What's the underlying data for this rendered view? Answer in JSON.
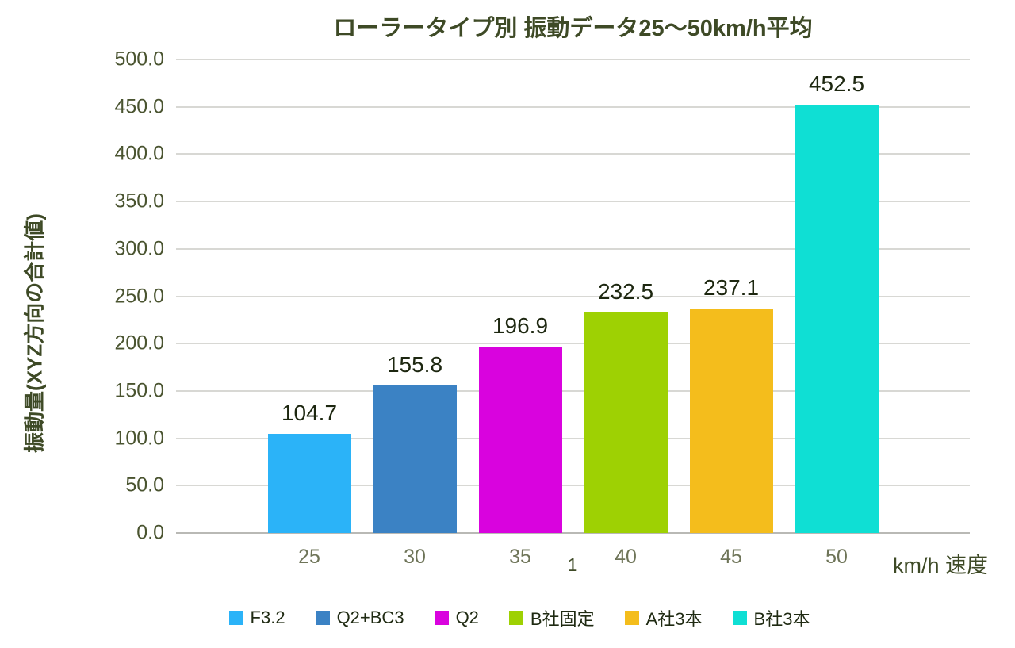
{
  "chart_data": {
    "type": "bar",
    "title": "ローラータイプ別 振動データ25〜50km/h平均",
    "ylabel": "振動量(XYZ方向の合計値)",
    "xlabel": "km/h 速度",
    "category_label": "1",
    "ylim": [
      0,
      500
    ],
    "ytick_step": 50,
    "ytick_decimals": 1,
    "grid": true,
    "legend_position": "bottom",
    "categories": [
      "25",
      "30",
      "35",
      "40",
      "45",
      "50"
    ],
    "series": [
      {
        "name": "F3.2",
        "speed": "25",
        "value": 104.7,
        "color": "#2bb3f8"
      },
      {
        "name": "Q2+BC3",
        "speed": "30",
        "value": 155.8,
        "color": "#3b82c4"
      },
      {
        "name": "Q2",
        "speed": "35",
        "value": 196.9,
        "color": "#d903de"
      },
      {
        "name": "B社固定",
        "speed": "40",
        "value": 232.5,
        "color": "#9ed103"
      },
      {
        "name": "A社3本",
        "speed": "45",
        "value": 237.1,
        "color": "#f4bd1c"
      },
      {
        "name": "B社3本",
        "speed": "50",
        "value": 452.5,
        "color": "#0fdfd4"
      }
    ],
    "style_colors": {
      "title_text": "#3e4a26",
      "ytick_text": "#4a5430",
      "xtick_text": "#6e7458",
      "data_label_text": "#1d2710",
      "gridline": "#d8d8d4",
      "axis_line": "#b9b9b5",
      "background": "#ffffff"
    }
  }
}
